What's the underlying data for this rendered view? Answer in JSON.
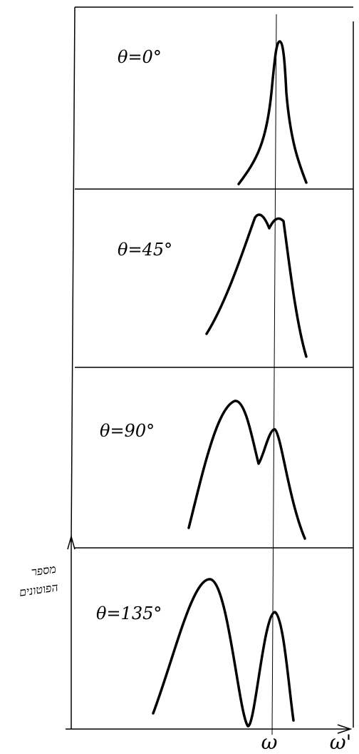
{
  "panels": [
    {
      "label": "θ=0°"
    },
    {
      "label": "θ=45°"
    },
    {
      "label": "θ=90°"
    },
    {
      "label": "θ=135°"
    }
  ],
  "y_axis": {
    "label_line1": "מספר",
    "label_line2": "הפוטונים"
  },
  "x_axis": {
    "marker": "ω",
    "label": "ω'"
  }
}
